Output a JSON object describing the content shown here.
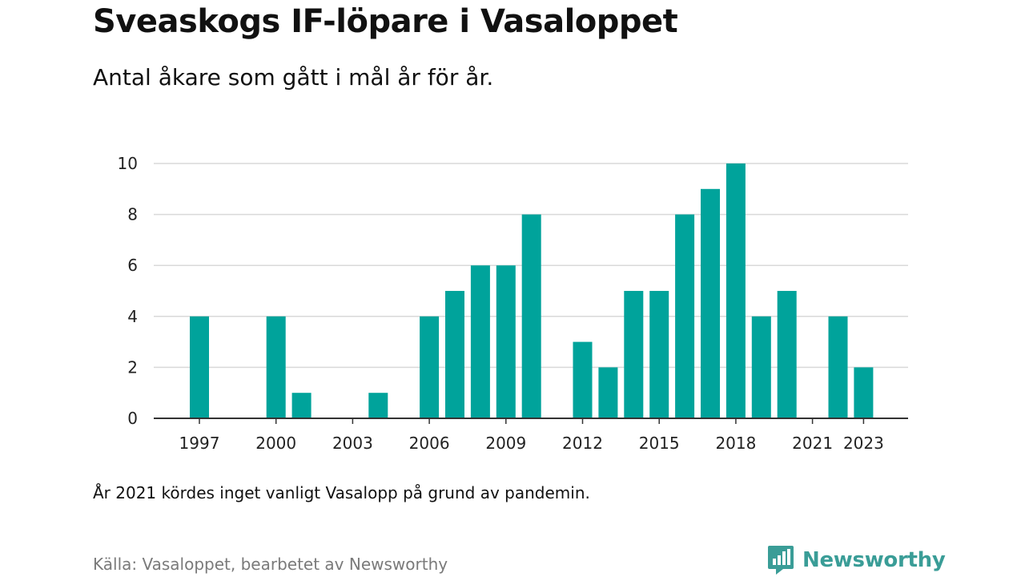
{
  "header": {
    "title": "Sveaskogs IF-löpare i Vasaloppet",
    "subtitle": "Antal åkare som gått i mål år för år."
  },
  "footer": {
    "note": "År 2021 kördes inget vanligt Vasalopp på grund av pandemin.",
    "source": "Källa: Vasaloppet, bearbetet av Newsworthy",
    "brand": "Newsworthy"
  },
  "colors": {
    "bar": "#00a39b",
    "grid": "#d9d9d9",
    "axis": "#333333",
    "brand": "#3a9d97"
  },
  "icons": {
    "brand_logo": "newsworthy-logo-icon"
  },
  "chart_data": {
    "type": "bar",
    "title": "Sveaskogs IF-löpare i Vasaloppet",
    "subtitle": "Antal åkare som gått i mål år för år.",
    "xlabel": "",
    "ylabel": "",
    "x": [
      1997,
      1998,
      1999,
      2000,
      2001,
      2002,
      2003,
      2004,
      2005,
      2006,
      2007,
      2008,
      2009,
      2010,
      2011,
      2012,
      2013,
      2014,
      2015,
      2016,
      2017,
      2018,
      2019,
      2020,
      2021,
      2022,
      2023
    ],
    "values": [
      4,
      0,
      0,
      4,
      1,
      0,
      0,
      1,
      0,
      4,
      5,
      6,
      6,
      8,
      0,
      3,
      2,
      5,
      5,
      8,
      9,
      10,
      4,
      5,
      0,
      4,
      2
    ],
    "xticks": [
      "1997",
      "2000",
      "2003",
      "2006",
      "2009",
      "2012",
      "2015",
      "2018",
      "2021",
      "2023"
    ],
    "yticks": [
      "0",
      "2",
      "4",
      "6",
      "8",
      "10"
    ],
    "ylim": [
      0,
      10
    ],
    "grid": true,
    "legend": "none"
  }
}
